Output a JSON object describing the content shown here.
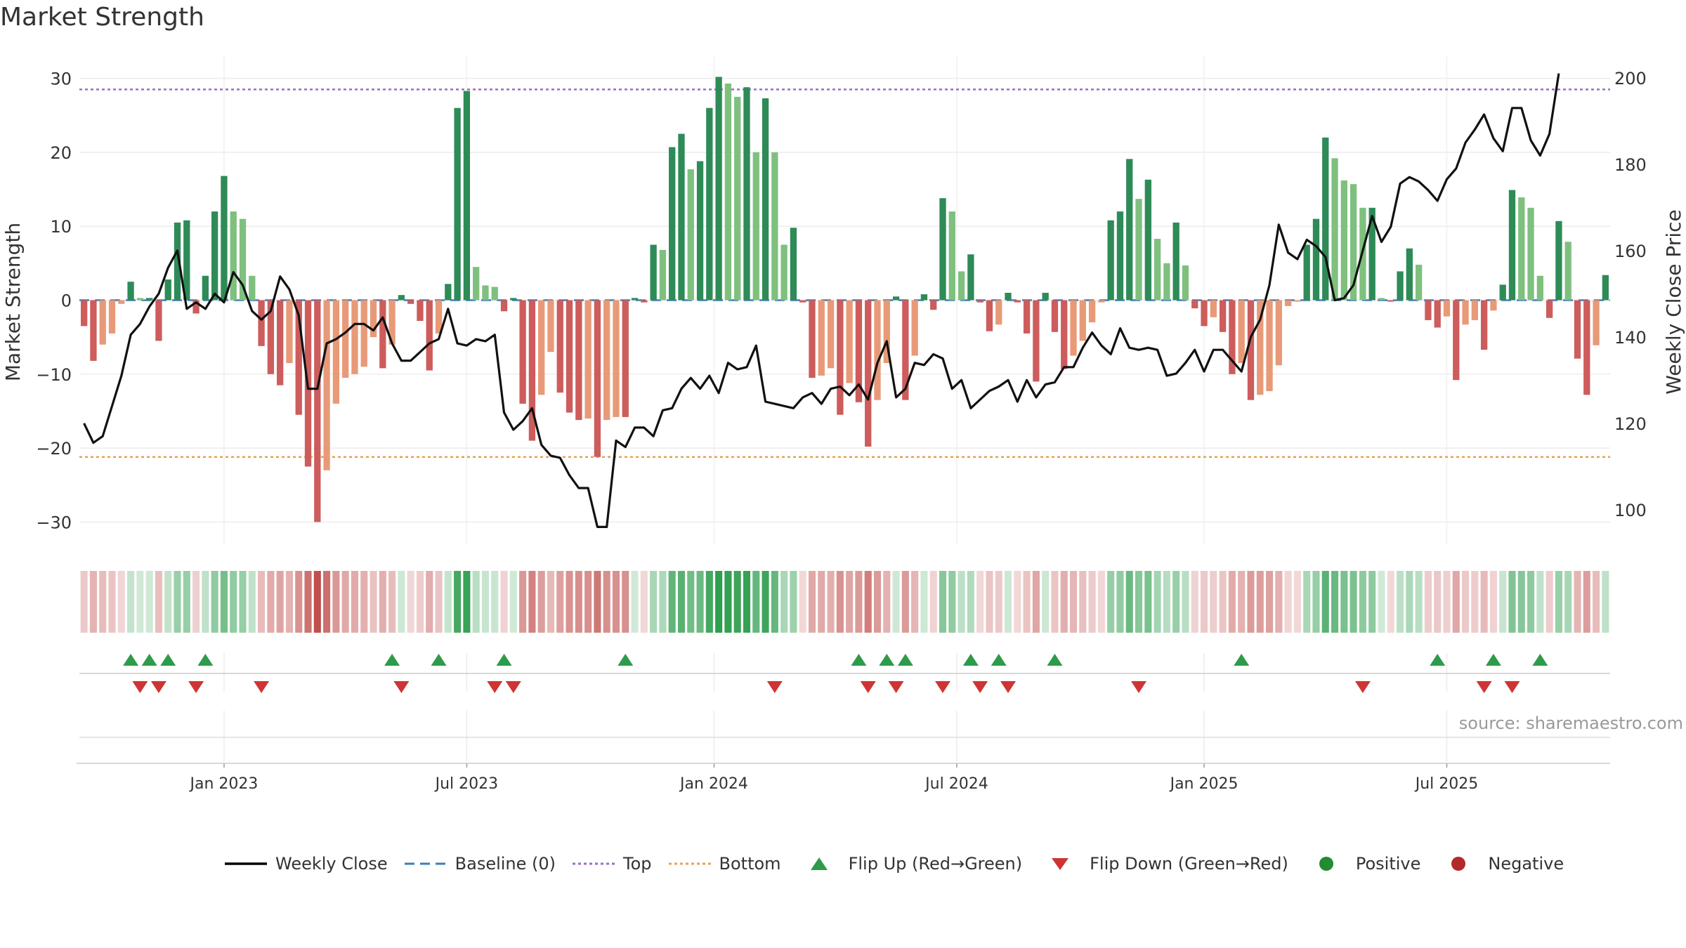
{
  "chart_data": {
    "type": "bar",
    "title": "Market Strength",
    "source": "source: sharemaestro.com",
    "ylabel_left": "Market Strength",
    "ylabel_right": "Weekly Close Price",
    "ylim_left": [
      -33,
      33
    ],
    "ylim_right": [
      92,
      205
    ],
    "yticks_left": [
      30,
      20,
      10,
      0,
      -10,
      -20,
      -30
    ],
    "yticks_left_labels": [
      "30",
      "20",
      "10",
      "0",
      "−10",
      "−20",
      "−30"
    ],
    "yticks_right": [
      200,
      180,
      160,
      140,
      120,
      100
    ],
    "yticks_right_labels": [
      "200",
      "180",
      "160",
      "140",
      "120",
      "100"
    ],
    "xtick_labels": [
      "Jan 2023",
      "Jul 2023",
      "Jan 2024",
      "Jul 2024",
      "Jan 2025",
      "Jul 2025"
    ],
    "xtick_weeks": [
      15,
      41,
      67.5,
      93.5,
      120,
      146
    ],
    "top_line": 28.5,
    "bottom_line": -21.2,
    "baseline": 0,
    "strength": [
      -3.5,
      -8.2,
      -6,
      -4.5,
      -0.5,
      2.5,
      0.3,
      0.3,
      -5.5,
      2.8,
      10.5,
      10.8,
      -1.8,
      3.3,
      12,
      16.8,
      12,
      11,
      3.3,
      -6.2,
      -10,
      -11.5,
      -8.5,
      -15.5,
      -22.5,
      -30,
      -23,
      -14,
      -10.5,
      -10,
      -9,
      -5,
      -9.2,
      -6,
      0.7,
      -0.5,
      -2.8,
      -9.5,
      -4.5,
      2.2,
      26,
      28.3,
      4.5,
      2,
      1.8,
      -1.5,
      0.3,
      -14,
      -19,
      -12.8,
      -7,
      -12.5,
      -15.2,
      -16.2,
      -16,
      -21.2,
      -16.2,
      -15.8,
      -15.8,
      0.3,
      -0.3,
      7.5,
      6.8,
      20.7,
      22.5,
      17.7,
      18.8,
      26,
      30.2,
      29.3,
      27.5,
      28.8,
      20,
      27.3,
      20,
      7.5,
      9.8,
      -0.3,
      -10.5,
      -10.2,
      -9.2,
      -15.5,
      -11.2,
      -13.8,
      -19.8,
      -13.5,
      -8.5,
      0.5,
      -13.5,
      -7.5,
      0.8,
      -1.3,
      13.8,
      12,
      3.9,
      6.2,
      -0.3,
      -4.2,
      -3.3,
      1,
      -0.3,
      -4.5,
      -11,
      1,
      -4.3,
      -9.3,
      -7.5,
      -5.5,
      -3,
      -0.3,
      10.8,
      12,
      19.1,
      13.7,
      16.3,
      8.3,
      5,
      10.5,
      4.7,
      -1.1,
      -3.5,
      -2.3,
      -4.3,
      -10,
      -8.5,
      -13.5,
      -12.8,
      -12.3,
      -8.8,
      -0.8,
      -0.2,
      7.5,
      11,
      22,
      19.2,
      16.2,
      15.7,
      12.5,
      12.5,
      0.3,
      -0.2,
      3.9,
      7,
      4.8,
      -2.7,
      -3.7,
      -2.2,
      -10.8,
      -3.3,
      -2.7,
      -6.7,
      -1.4,
      2.1,
      14.9,
      13.9,
      12.5,
      3.3,
      -2.4,
      10.7,
      7.9,
      -7.9,
      -12.8,
      -6.1,
      3.4
    ],
    "weekly_close": [
      120,
      115.5,
      117,
      124,
      131,
      140.5,
      143,
      147,
      150,
      156,
      160,
      146.5,
      148,
      146.5,
      150,
      148,
      155,
      152,
      146,
      144,
      146,
      154,
      151,
      145,
      128,
      128,
      138.5,
      139.5,
      141,
      143,
      143,
      141.5,
      144.5,
      138.5,
      134.5,
      134.5,
      136.5,
      138.5,
      139.5,
      146.5,
      138.5,
      138,
      139.5,
      139,
      140.5,
      122.5,
      118.5,
      120.5,
      123.5,
      115,
      112.5,
      112,
      108,
      105,
      105,
      96,
      96,
      116,
      114.5,
      119,
      119,
      117,
      123,
      123.5,
      128,
      130.5,
      128,
      131,
      127,
      134,
      132.5,
      133,
      138,
      125,
      124.5,
      124,
      123.5,
      126,
      127,
      124.5,
      128,
      128.5,
      126.5,
      129,
      125.5,
      134,
      139,
      126,
      128,
      134,
      133.5,
      136,
      135,
      128,
      130,
      123.5,
      125.5,
      127.5,
      128.5,
      130,
      125,
      130,
      126,
      129,
      129.5,
      133,
      133,
      137.5,
      141,
      138,
      136,
      142,
      137.5,
      137,
      137.5,
      137,
      131,
      131.5,
      134,
      137,
      132,
      137,
      137,
      134.5,
      132,
      140,
      144,
      152,
      166,
      159.5,
      158,
      162.5,
      161,
      158.5,
      148.5,
      149,
      152,
      160,
      168,
      162,
      165.5,
      175.5,
      177,
      176,
      174,
      171.5,
      176.5,
      179,
      185,
      188,
      191.5,
      186,
      183,
      193,
      193,
      185.5,
      182,
      187,
      201
    ],
    "flip_up_weeks": [
      5,
      7,
      9,
      13,
      33,
      38,
      45,
      58,
      83,
      86,
      88,
      95,
      98,
      104,
      124,
      145,
      151,
      156
    ],
    "flip_down_weeks": [
      6,
      8,
      12,
      19,
      34,
      44,
      46,
      74,
      84,
      87,
      92,
      96,
      99,
      113,
      137,
      150,
      153
    ],
    "legend": [
      {
        "label": "Weekly Close",
        "color": "#000000"
      },
      {
        "label": "Baseline (0)",
        "color": "#3b7eb8"
      },
      {
        "label": "Top",
        "color": "#9a6fc0"
      },
      {
        "label": "Bottom",
        "color": "#e3a355"
      },
      {
        "label": "Flip Up (Red→Green)",
        "color": "#2e9b4b"
      },
      {
        "label": "Flip Down (Green→Red)",
        "color": "#cf3434"
      },
      {
        "label": "Positive",
        "color": "#238b32"
      },
      {
        "label": "Negative",
        "color": "#b22a2a"
      }
    ]
  }
}
